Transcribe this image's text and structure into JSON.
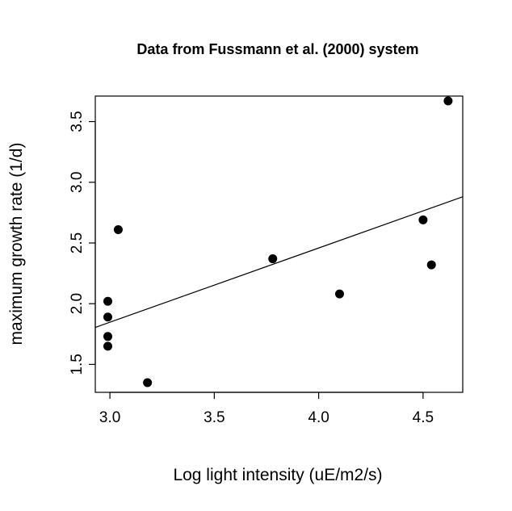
{
  "chart_data": {
    "type": "scatter",
    "title": "Data from Fussmann et al. (2000) system",
    "xlabel": "Log light intensity (uE/m2/s)",
    "ylabel": "maximum growth rate (1/d)",
    "xlim": [
      2.93,
      4.69
    ],
    "ylim": [
      1.27,
      3.71
    ],
    "x_ticks": [
      "3.0",
      "3.5",
      "4.0",
      "4.5"
    ],
    "y_ticks": [
      "1.5",
      "2.0",
      "2.5",
      "3.0",
      "3.5"
    ],
    "grid": false,
    "legend": "none",
    "points": [
      {
        "x": 2.99,
        "y": 1.65
      },
      {
        "x": 2.99,
        "y": 1.73
      },
      {
        "x": 2.99,
        "y": 1.89
      },
      {
        "x": 2.99,
        "y": 2.02
      },
      {
        "x": 3.04,
        "y": 2.61
      },
      {
        "x": 3.18,
        "y": 1.35
      },
      {
        "x": 3.78,
        "y": 2.37
      },
      {
        "x": 4.1,
        "y": 2.08
      },
      {
        "x": 4.5,
        "y": 2.69
      },
      {
        "x": 4.54,
        "y": 2.32
      },
      {
        "x": 4.62,
        "y": 3.67
      }
    ],
    "fit_line": {
      "intercept": 0.0135,
      "slope": 0.6113
    },
    "point_color": "#000000",
    "line_color": "#000000"
  }
}
